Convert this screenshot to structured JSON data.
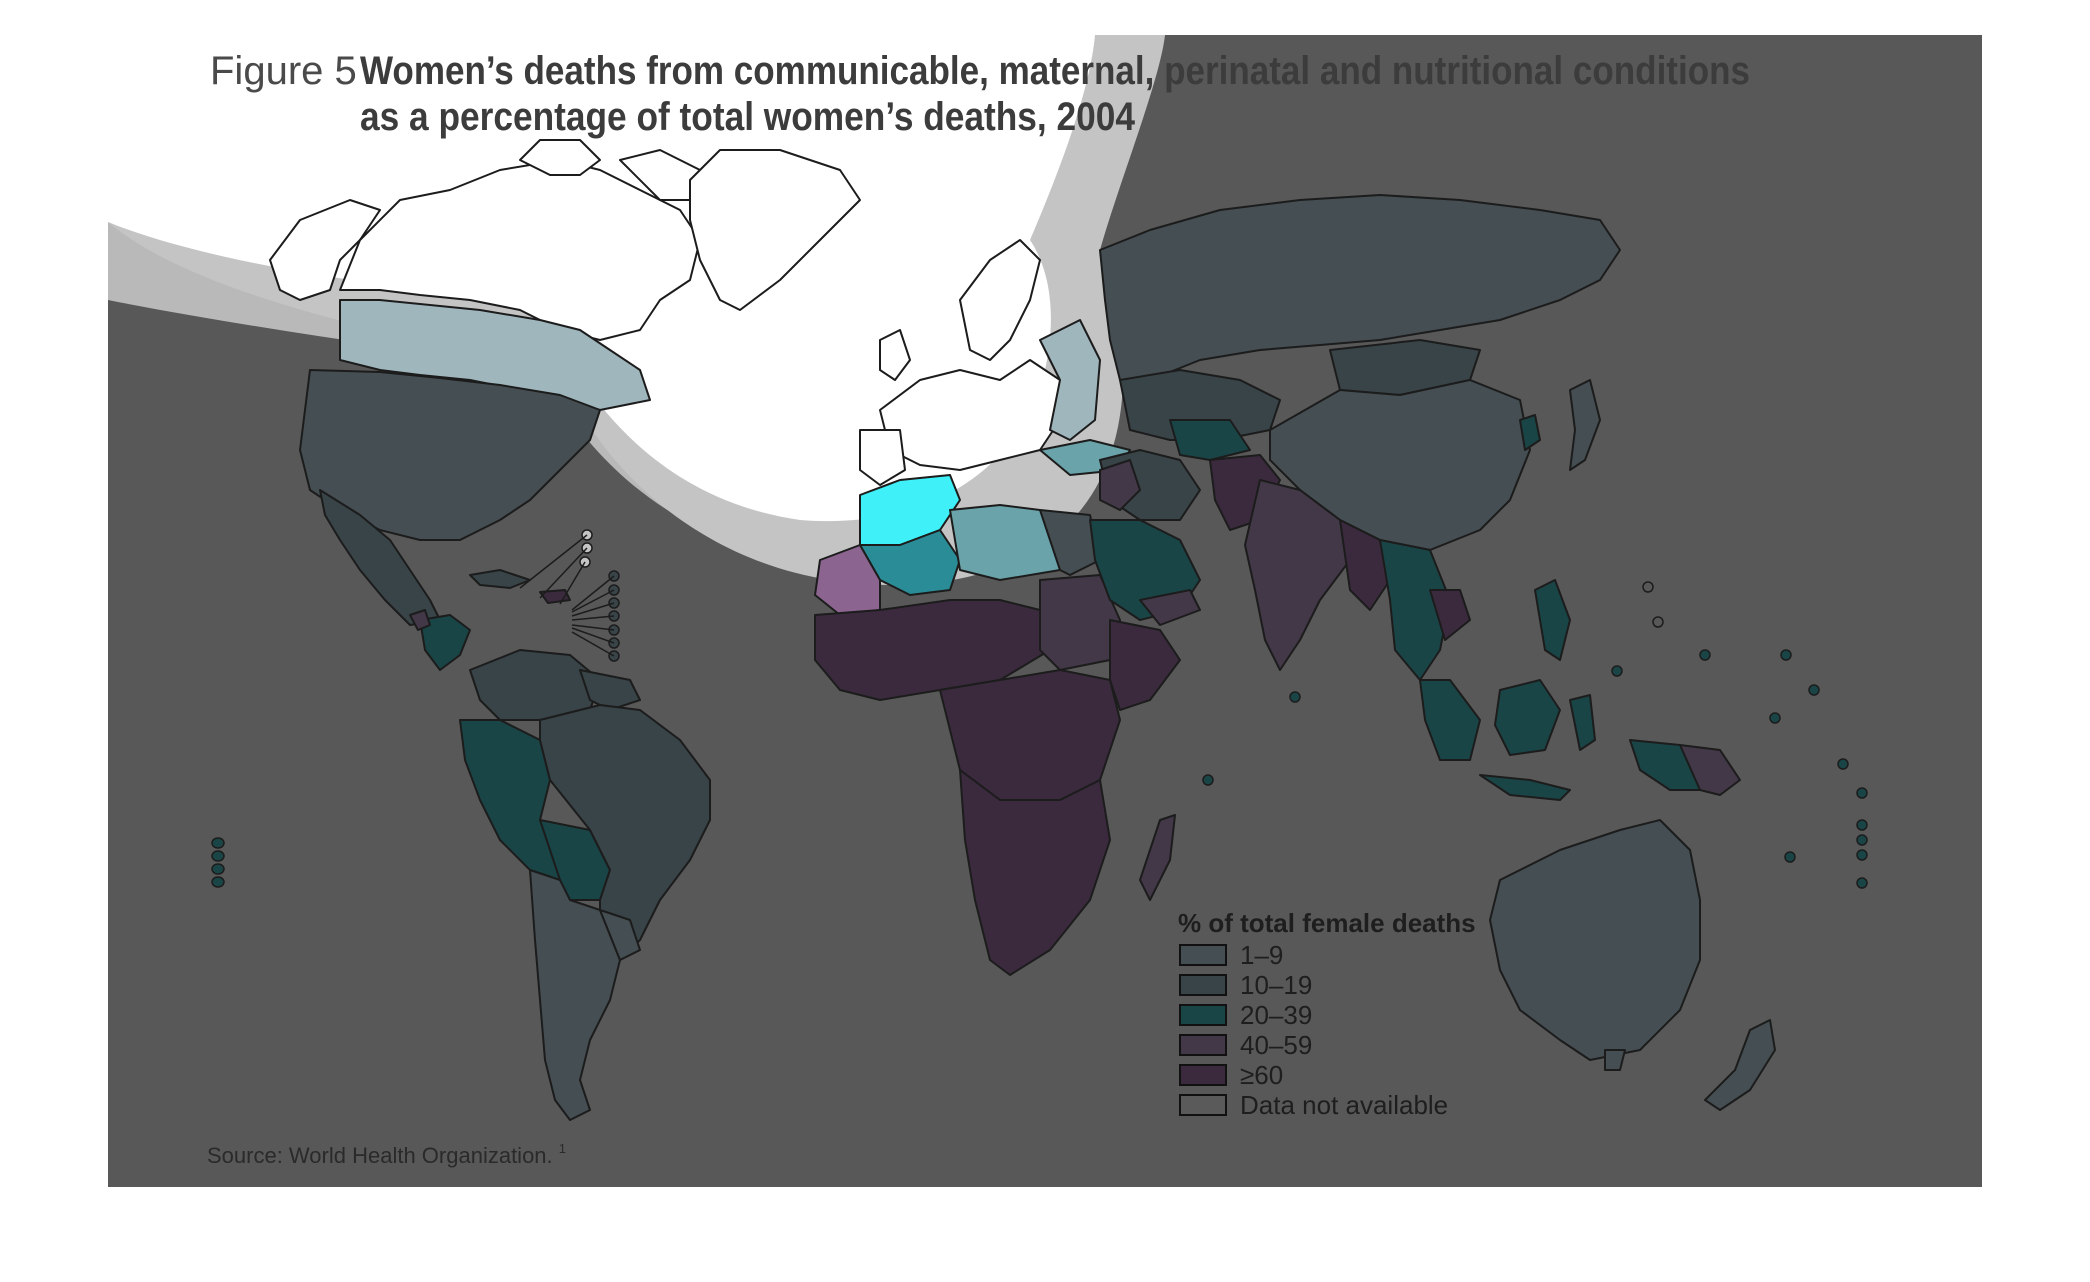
{
  "figure": {
    "label": "Figure 5",
    "title_line1": "Women’s deaths from communicable, maternal, perinatal and nutritional conditions",
    "title_line2": "as a percentage of total women’s deaths, 2004",
    "source": "Source: World Health Organization.",
    "source_superscript": "1"
  },
  "legend": {
    "title": "% of total female deaths",
    "items": [
      {
        "label": "1–9",
        "color": "#454f53"
      },
      {
        "label": "10–19",
        "color": "#384448"
      },
      {
        "label": "20–39",
        "color": "#1a4547"
      },
      {
        "label": "40–59",
        "color": "#433848"
      },
      {
        "label": "≥60",
        "color": "#3b2a3e"
      },
      {
        "label": "Data not available",
        "color": "#5a5a5a"
      }
    ]
  },
  "colors": {
    "ocean": "#585858",
    "highlight_white": "#ffffff",
    "highlight_ring": "#c4c4c4",
    "tint_1_9": "#9fb6bc",
    "tint_20_39_cyan": "#3ff0f8",
    "tint_20_39_teal": "#2a8c96",
    "tint_40_59": "#8b6490",
    "tint_light_teal": "#6aa3aa"
  }
}
